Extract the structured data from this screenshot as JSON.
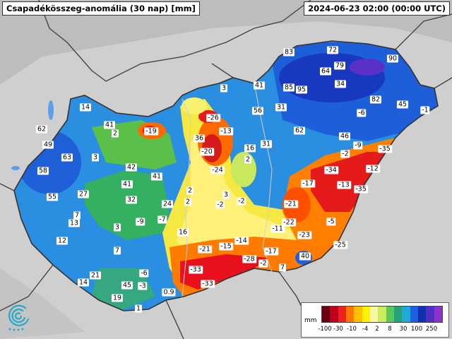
{
  "header": {
    "title": "Csapadékösszeg-anomália (30 nap) [mm]",
    "timestamp": "2024-06-23 02:00 (00:00 UTC)"
  },
  "legend": {
    "unit": "mm",
    "ticks": [
      "-100",
      "-30",
      "-10",
      "-4",
      "2",
      "8",
      "30",
      "100",
      "250"
    ],
    "colors": [
      "#6b0010",
      "#c0001a",
      "#ef2020",
      "#ff7800",
      "#ffc000",
      "#fff300",
      "#f8f8a0",
      "#c8ec5a",
      "#58c858",
      "#2aa07a",
      "#20a8d8",
      "#2060e0",
      "#1030b0",
      "#5030c0",
      "#9030d0"
    ]
  },
  "map": {
    "background_color": "#cfcfcf",
    "values": [
      "83",
      "72",
      "90",
      "64",
      "79",
      "41",
      "85",
      "95",
      "34",
      "82",
      "45",
      "-1",
      "3",
      "56",
      "31",
      "-6",
      "-26",
      "-13",
      "14",
      "62",
      "-19",
      "41",
      "62",
      "46",
      "36",
      "-9",
      "-35",
      "49",
      "63",
      "-20",
      "16",
      "2",
      "3",
      "-24",
      "31",
      "-2",
      "-12",
      "42",
      "-34",
      "58",
      "41",
      "2",
      "-17",
      "-13",
      "55",
      "27",
      "41",
      "2",
      "3",
      "-35",
      "32",
      "24",
      "2",
      "-2",
      "-2",
      "7",
      "-9",
      "-7",
      "-21",
      "13",
      "-5",
      "3",
      "16",
      "-11",
      "-22",
      "12",
      "-23",
      "-14",
      "7",
      "-21",
      "-15",
      "-25",
      "-17",
      "-28",
      "40",
      "-2",
      "7",
      "-33",
      "-6",
      "21",
      "14",
      "45",
      "-3",
      "-33",
      "0.9",
      "19",
      "1"
    ]
  }
}
